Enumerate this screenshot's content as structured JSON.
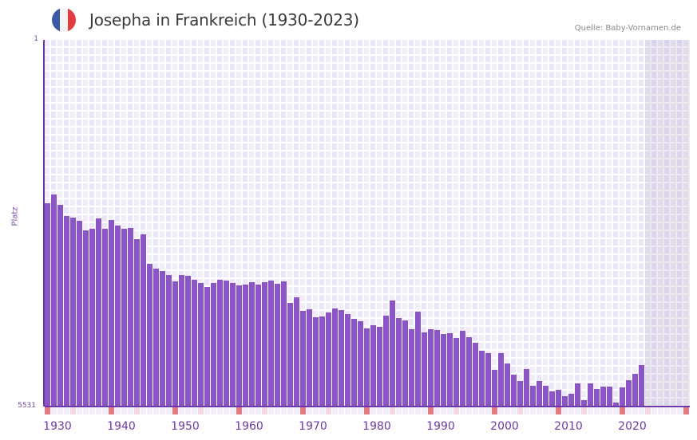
{
  "header": {
    "title": "Josepha in Frankreich (1930-2023)",
    "source": "Quelle: Baby-Vornamen.de",
    "flag_colors": [
      "#3a5aa8",
      "#f4f4f6",
      "#e53a3f"
    ]
  },
  "colors": {
    "bar": "#8b55c7",
    "axis": "#6a3aa8",
    "decade_marker": "#e57982",
    "mid_marker": "#f5d8e2"
  },
  "chart_data": {
    "type": "bar",
    "title": "Josepha in Frankreich (1930-2023)",
    "xlabel": "",
    "ylabel": "Platz",
    "y_axis_inverted": true,
    "ylim": [
      1,
      5531
    ],
    "y_ticks": [
      "1",
      "5531"
    ],
    "x_range": [
      1930,
      2030
    ],
    "x_tick_labels": [
      "1930",
      "1940",
      "1950",
      "1960",
      "1970",
      "1980",
      "1990",
      "2000",
      "2010",
      "2020"
    ],
    "grid": true,
    "shaded_future_range": [
      2024,
      2030
    ],
    "categories": [
      1930,
      1931,
      1932,
      1933,
      1934,
      1935,
      1936,
      1937,
      1938,
      1939,
      1940,
      1941,
      1942,
      1943,
      1944,
      1945,
      1946,
      1947,
      1948,
      1949,
      1950,
      1951,
      1952,
      1953,
      1954,
      1955,
      1956,
      1957,
      1958,
      1959,
      1960,
      1961,
      1962,
      1963,
      1964,
      1965,
      1966,
      1967,
      1968,
      1969,
      1970,
      1971,
      1972,
      1973,
      1974,
      1975,
      1976,
      1977,
      1978,
      1979,
      1980,
      1981,
      1982,
      1983,
      1984,
      1985,
      1986,
      1987,
      1988,
      1989,
      1990,
      1991,
      1992,
      1993,
      1994,
      1995,
      1996,
      1997,
      1998,
      1999,
      2000,
      2001,
      2002,
      2003,
      2004,
      2005,
      2006,
      2007,
      2008,
      2009,
      2010,
      2011,
      2012,
      2013,
      2014,
      2015,
      2016,
      2017,
      2018,
      2019,
      2020,
      2021,
      2022,
      2023
    ],
    "series": [
      {
        "name": "Platz",
        "values": [
          2466,
          2333,
          2489,
          2658,
          2682,
          2730,
          2874,
          2850,
          2694,
          2850,
          2718,
          2802,
          2850,
          2838,
          3006,
          2934,
          3379,
          3451,
          3487,
          3547,
          3643,
          3547,
          3559,
          3619,
          3667,
          3727,
          3667,
          3619,
          3631,
          3667,
          3703,
          3691,
          3655,
          3691,
          3655,
          3631,
          3679,
          3643,
          3968,
          3884,
          4088,
          4064,
          4184,
          4172,
          4112,
          4052,
          4076,
          4136,
          4208,
          4244,
          4352,
          4304,
          4328,
          4160,
          3932,
          4196,
          4232,
          4364,
          4100,
          4412,
          4364,
          4376,
          4436,
          4424,
          4496,
          4388,
          4484,
          4568,
          4689,
          4725,
          4977,
          4725,
          4881,
          5049,
          5145,
          4965,
          5217,
          5145,
          5217,
          5301,
          5277,
          5373,
          5337,
          5181,
          5434,
          5181,
          5265,
          5229,
          5229,
          5470,
          5241,
          5133,
          5037,
          4905
        ]
      }
    ]
  }
}
